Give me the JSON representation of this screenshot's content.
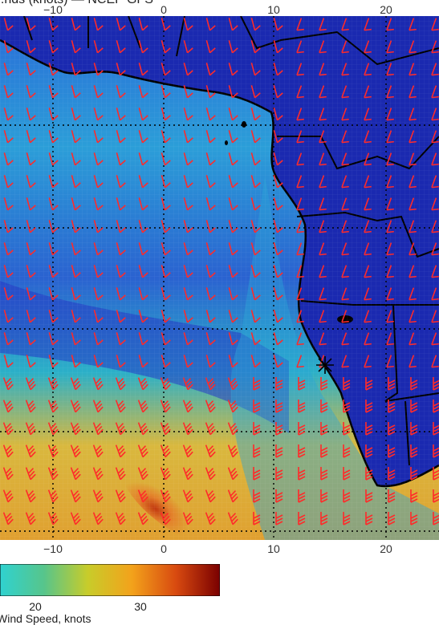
{
  "title": "...nds (knots) — NCEP GFS",
  "axes": {
    "top_ticks": [
      "−10",
      "0",
      "10",
      "20"
    ],
    "bottom_ticks": [
      "−10",
      "0",
      "10",
      "20"
    ]
  },
  "colorbar": {
    "tick_labels": [
      "20",
      "30"
    ],
    "label": "Wind Speed, knots",
    "colors": [
      "#2fd2d0",
      "#57c58b",
      "#c8cc2a",
      "#f3a21b",
      "#d84a10",
      "#7a0000"
    ]
  },
  "map": {
    "ocean_colors": {
      "calm": "#1e2fbf",
      "moderate": "#2aa6d6",
      "strong": "#d7c54a",
      "max": "#b83a12"
    },
    "land_color": "#1a29b0",
    "barb_color": "#ff2a2a",
    "coast_color": "#000000"
  }
}
